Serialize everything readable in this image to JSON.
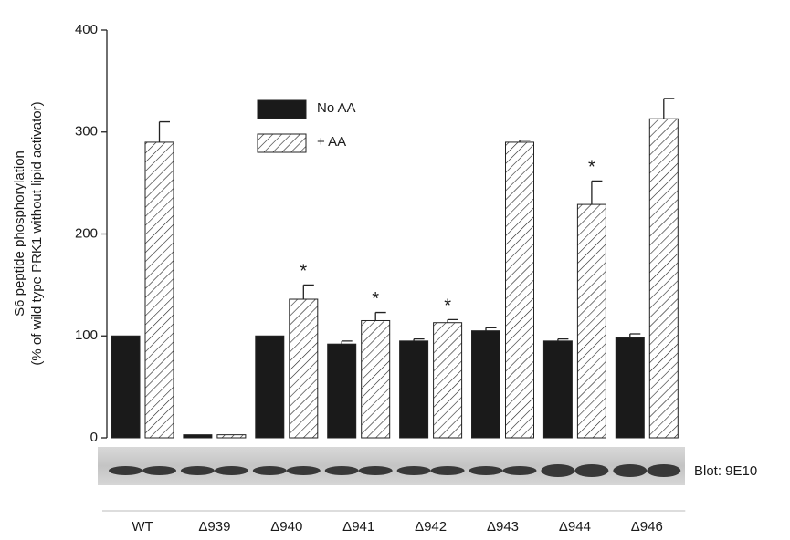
{
  "chart_data": {
    "type": "bar",
    "y_label": [
      "S6 peptide phosphorylation",
      "(% of wild type PRK1 without lipid activator)"
    ],
    "categories": [
      "WT",
      "Δ939",
      "Δ940",
      "Δ941",
      "Δ942",
      "Δ943",
      "Δ944",
      "Δ946"
    ],
    "series": [
      {
        "name": "No AA",
        "color": "#1a1a1a",
        "hatch": false,
        "values": [
          100,
          3,
          100,
          92,
          95,
          105,
          95,
          98
        ],
        "errors": [
          0,
          0,
          0,
          3,
          2,
          3,
          2,
          4
        ]
      },
      {
        "name": "+ AA",
        "color": "#ffffff",
        "hatch": true,
        "values": [
          290,
          3,
          136,
          115,
          113,
          290,
          229,
          313
        ],
        "errors": [
          20,
          0,
          14,
          8,
          3,
          2,
          23,
          20
        ]
      }
    ],
    "annotations": [
      {
        "text": "*",
        "category": "Δ940"
      },
      {
        "text": "*",
        "category": "Δ941"
      },
      {
        "text": "*",
        "category": "Δ942"
      },
      {
        "text": "*",
        "category": "Δ944"
      }
    ],
    "ylim": [
      0,
      400
    ],
    "yticks": [
      0,
      100,
      200,
      300,
      400
    ],
    "grid": false,
    "blot_label": "Blot: 9E10"
  }
}
